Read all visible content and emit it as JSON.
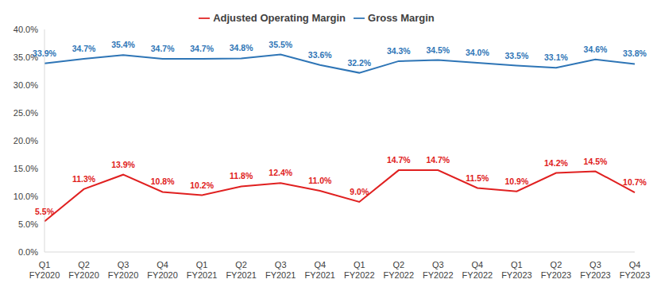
{
  "chart_data": {
    "type": "line",
    "categories": [
      "Q1 FY2020",
      "Q2 FY2020",
      "Q3 FY2020",
      "Q4 FY2020",
      "Q1 FY2021",
      "Q2 FY2021",
      "Q3 FY2021",
      "Q4 FY2021",
      "Q1 FY2022",
      "Q2 FY2022",
      "Q3 FY2022",
      "Q4 FY2022",
      "Q1 FY2023",
      "Q2 FY2023",
      "Q3 FY2023",
      "Q4 FY2023"
    ],
    "series": [
      {
        "name": "Gross Margin",
        "color": "#2e75b6",
        "marker": "none",
        "values": [
          33.9,
          34.7,
          35.4,
          34.7,
          34.7,
          34.8,
          35.5,
          33.6,
          32.2,
          34.3,
          34.5,
          34.0,
          33.5,
          33.1,
          34.6,
          33.8
        ],
        "value_labels": [
          "33.9%",
          "34.7%",
          "35.4%",
          "34.7%",
          "34.7%",
          "34.8%",
          "35.5%",
          "33.6%",
          "32.2%",
          "34.3%",
          "34.5%",
          "34.0%",
          "33.5%",
          "33.1%",
          "34.6%",
          "33.8%"
        ]
      },
      {
        "name": "Adjusted Operating Margin",
        "color": "#e02020",
        "marker": "none",
        "values": [
          5.5,
          11.3,
          13.9,
          10.8,
          10.2,
          11.8,
          12.4,
          11.0,
          9.0,
          14.7,
          14.7,
          11.5,
          10.9,
          14.2,
          14.5,
          10.7
        ],
        "value_labels": [
          "5.5%",
          "11.3%",
          "13.9%",
          "10.8%",
          "10.2%",
          "11.8%",
          "12.4%",
          "11.0%",
          "9.0%",
          "14.7%",
          "14.7%",
          "11.5%",
          "10.9%",
          "14.2%",
          "14.5%",
          "10.7%"
        ]
      }
    ],
    "ylim": [
      0,
      40
    ],
    "yticks": [
      {
        "value": 0,
        "label": "0.0%"
      },
      {
        "value": 5,
        "label": "5.0%"
      },
      {
        "value": 10,
        "label": "10.0%"
      },
      {
        "value": 15,
        "label": "15.0%"
      },
      {
        "value": 20,
        "label": "20.0%"
      },
      {
        "value": 25,
        "label": "25.0%"
      },
      {
        "value": 30,
        "label": "30.0%"
      },
      {
        "value": 35,
        "label": "35.0%"
      },
      {
        "value": 40,
        "label": "40.0%"
      }
    ],
    "grid": false,
    "legend": "top",
    "data_labels": true
  }
}
